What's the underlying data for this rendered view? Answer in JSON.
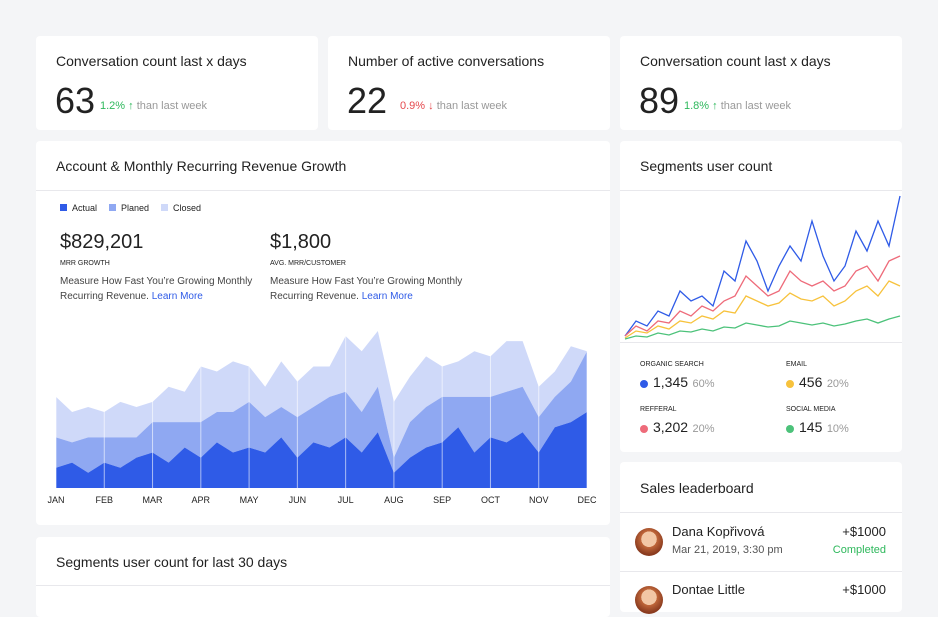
{
  "kpis": [
    {
      "title": "Conversation count last x days",
      "value": 63,
      "change": "1.2%",
      "arrow": "↑",
      "note": "than last week",
      "color": "#2eb85c"
    },
    {
      "title": "Number of active conversations",
      "value": 22,
      "change": "0.9%",
      "arrow": "↓",
      "note": "than last week",
      "color": "#e5484d"
    },
    {
      "title": "Conversation count last x days",
      "value": 89,
      "change": "1.8%",
      "arrow": "↑",
      "note": "than last week",
      "color": "#2eb85c"
    }
  ],
  "revenue": {
    "title": "Account & Monthly Recurring Revenue Growth",
    "stats": [
      {
        "value": "$829,201",
        "label": "MRR GROWTH",
        "text": "Measure How Fast You’re Growing Monthly Recurring Revenue.",
        "link": "Learn More"
      },
      {
        "value": "$1,800",
        "label": "AVG. MRR/CUSTOMER",
        "text": "Measure How Fast You’re Growing Monthly Recurring Revenue.",
        "link": "Learn More"
      }
    ],
    "chart_data": {
      "type": "area",
      "categories": [
        "JAN",
        null,
        null,
        "FEB",
        null,
        null,
        "MAR",
        null,
        null,
        "APR",
        null,
        null,
        "MAY",
        null,
        null,
        "JUN",
        null,
        null,
        "JUL",
        null,
        null,
        "AUG",
        null,
        null,
        "SEP",
        null,
        null,
        "OCT",
        null,
        null,
        "NOV",
        null,
        null,
        "DEC"
      ],
      "series": [
        {
          "name": "Actual",
          "color": "#2f5be7",
          "values": [
            20,
            25,
            15,
            25,
            20,
            30,
            35,
            25,
            40,
            30,
            45,
            35,
            40,
            35,
            50,
            30,
            45,
            40,
            50,
            35,
            55,
            15,
            30,
            40,
            45,
            60,
            35,
            50,
            45,
            55,
            35,
            60,
            65,
            75
          ]
        },
        {
          "name": "Planed",
          "color": "#8fa8f2",
          "values": [
            30,
            20,
            35,
            25,
            30,
            20,
            30,
            40,
            25,
            35,
            30,
            40,
            45,
            35,
            30,
            40,
            35,
            50,
            45,
            40,
            45,
            15,
            35,
            40,
            45,
            30,
            55,
            40,
            50,
            45,
            35,
            30,
            40,
            60
          ]
        },
        {
          "name": "Closed",
          "color": "#cfd9f9",
          "values": [
            40,
            30,
            30,
            25,
            35,
            30,
            20,
            35,
            30,
            55,
            40,
            50,
            35,
            30,
            45,
            35,
            40,
            30,
            55,
            60,
            55,
            55,
            45,
            50,
            30,
            35,
            45,
            40,
            50,
            45,
            30,
            25,
            35,
            0
          ]
        }
      ]
    }
  },
  "segments": {
    "title": "Segments user count",
    "chart_data": {
      "type": "line",
      "x": [
        1,
        2,
        3,
        4,
        5,
        6,
        7,
        8,
        9,
        10,
        11,
        12,
        13,
        14,
        15,
        16,
        17,
        18,
        19,
        20,
        21,
        22,
        23,
        24,
        25,
        26
      ],
      "series": [
        {
          "name": "ORGANIC SEARCH",
          "color": "#2f5be7",
          "count": "1,345",
          "share": "60%",
          "values": [
            5,
            20,
            15,
            30,
            25,
            50,
            40,
            45,
            35,
            70,
            60,
            100,
            80,
            50,
            75,
            95,
            80,
            120,
            85,
            60,
            75,
            110,
            90,
            120,
            95,
            145
          ]
        },
        {
          "name": "EMAIL",
          "color": "#f7c23c",
          "count": "456",
          "share": "20%",
          "values": [
            3,
            10,
            8,
            15,
            12,
            20,
            18,
            25,
            22,
            30,
            28,
            45,
            40,
            35,
            38,
            48,
            42,
            40,
            45,
            35,
            40,
            50,
            55,
            45,
            60,
            55
          ]
        },
        {
          "name": "REFFERAL",
          "color": "#ee6b7a",
          "count": "3,202",
          "share": "20%",
          "values": [
            5,
            15,
            10,
            20,
            18,
            30,
            25,
            35,
            30,
            40,
            45,
            65,
            55,
            45,
            50,
            70,
            60,
            55,
            60,
            50,
            55,
            70,
            75,
            60,
            80,
            85
          ]
        },
        {
          "name": "SOCIAL MEDIA",
          "color": "#4cc27a",
          "count": "145",
          "share": "10%",
          "values": [
            2,
            5,
            4,
            8,
            6,
            10,
            9,
            12,
            10,
            14,
            13,
            18,
            16,
            14,
            15,
            20,
            18,
            16,
            18,
            15,
            17,
            20,
            22,
            18,
            22,
            25
          ]
        }
      ]
    }
  },
  "segments30": {
    "title": "Segments user count for last 30 days"
  },
  "leaderboard": {
    "title": "Sales leaderboard",
    "rows": [
      {
        "name": "Dana Kopřivová",
        "date": "Mar 21, 2019, 3:30 pm",
        "amount": "+$1000",
        "status": "Completed"
      },
      {
        "name": "Dontae Little",
        "amount": "+$1000"
      }
    ]
  }
}
